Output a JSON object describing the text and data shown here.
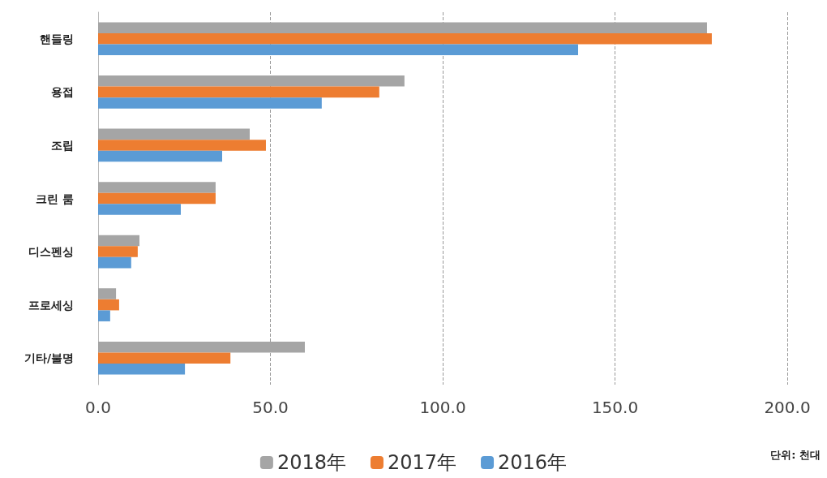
{
  "chart_data": {
    "type": "bar",
    "orientation": "horizontal",
    "categories": [
      "핸들링",
      "용접",
      "조립",
      "크린 룸",
      "디스펜싱",
      "프로세싱",
      "기타/불명"
    ],
    "series": [
      {
        "name": "2018年",
        "color": "#a5a5a5",
        "values": [
          176.7,
          88.9,
          44.0,
          34.1,
          12.0,
          5.2,
          60.0
        ]
      },
      {
        "name": "2017年",
        "color": "#ed7d31",
        "values": [
          178.1,
          81.6,
          48.7,
          34.1,
          11.5,
          6.1,
          38.4
        ]
      },
      {
        "name": "2016年",
        "color": "#5b9bd5",
        "values": [
          139.3,
          64.9,
          36.0,
          24.0,
          9.6,
          3.5,
          25.2
        ]
      }
    ],
    "xlim": [
      0,
      200
    ],
    "xticks": [
      {
        "value": 0,
        "label": "0.0"
      },
      {
        "value": 50,
        "label": "50.0"
      },
      {
        "value": 100,
        "label": "100.0"
      },
      {
        "value": 150,
        "label": "150.0"
      },
      {
        "value": 200,
        "label": "200.0"
      }
    ],
    "grid": "x",
    "legend": "bottom",
    "annotations": [
      "단위: 천대"
    ]
  }
}
